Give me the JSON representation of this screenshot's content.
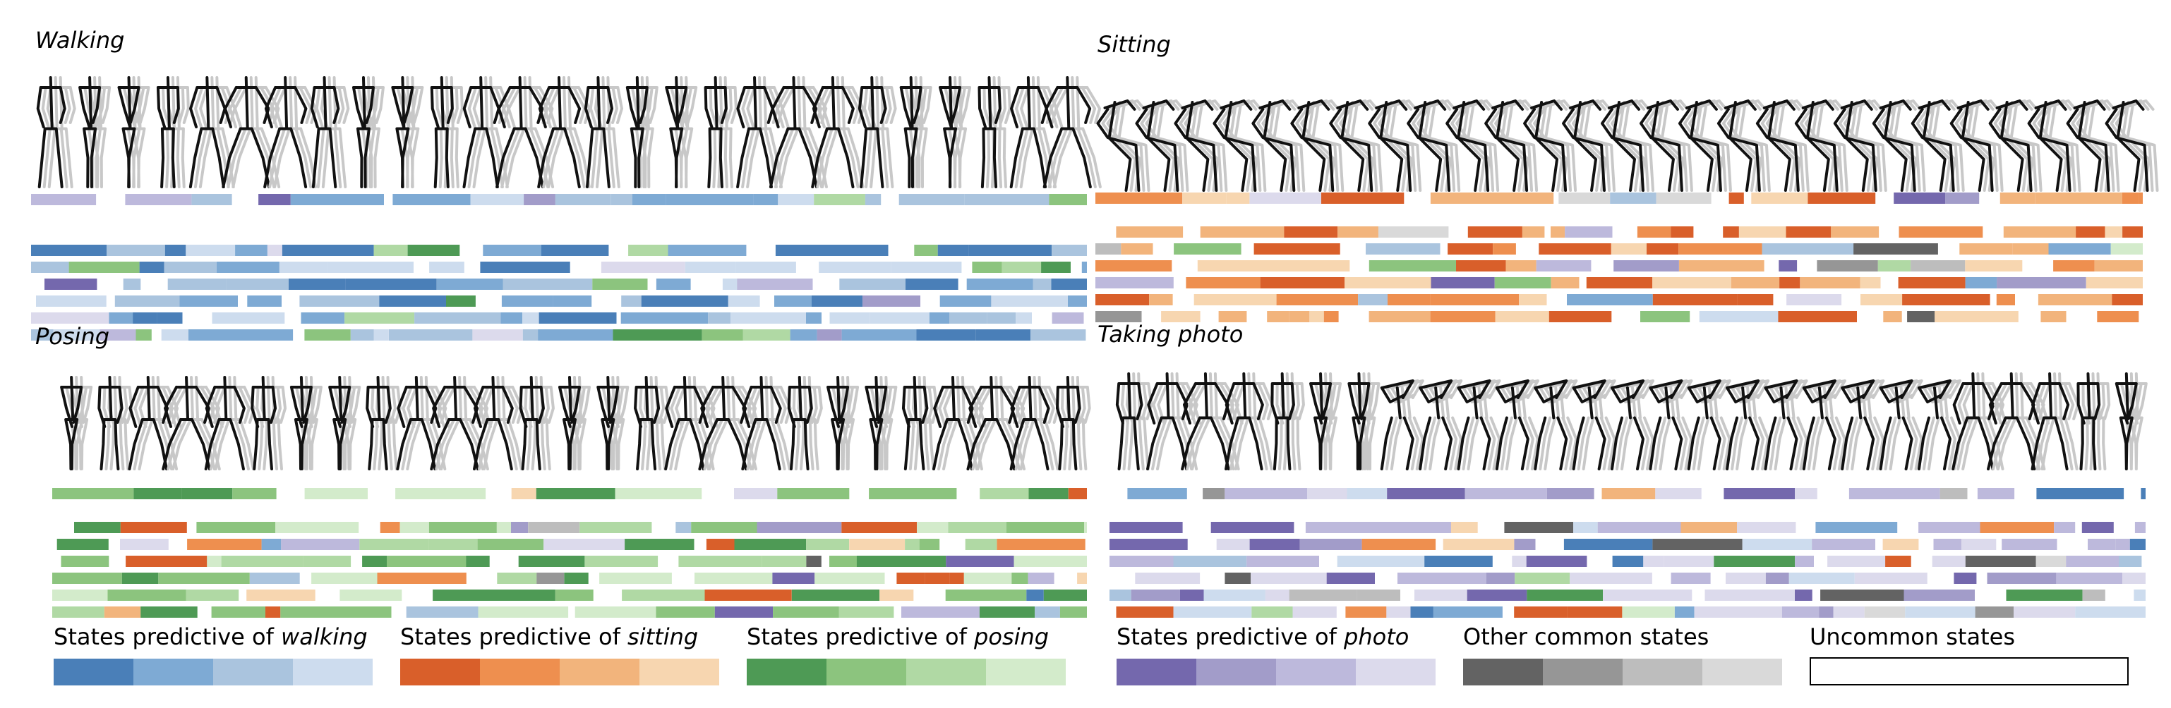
{
  "panels": [
    {
      "id": "walking",
      "title": "Walking",
      "palette_group": "walking"
    },
    {
      "id": "sitting",
      "title": "Sitting",
      "palette_group": "sitting"
    },
    {
      "id": "posing",
      "title": "Posing",
      "palette_group": "posing"
    },
    {
      "id": "photo",
      "title": "Taking photo",
      "palette_group": "photo"
    }
  ],
  "legend": [
    {
      "prefix": "States predictive of ",
      "emph": "walking",
      "colors": [
        "#4a7fb8",
        "#7eaad4",
        "#aac4de",
        "#cddcee"
      ]
    },
    {
      "prefix": "States predictive of ",
      "emph": "sitting",
      "colors": [
        "#d95f2a",
        "#ee8f4f",
        "#f2b47c",
        "#f7d6b0"
      ]
    },
    {
      "prefix": "States predictive of ",
      "emph": "posing",
      "colors": [
        "#4e9a55",
        "#8cc47e",
        "#b0d9a4",
        "#d3ebcb"
      ]
    },
    {
      "prefix": "States predictive of ",
      "emph": "photo",
      "colors": [
        "#7468ad",
        "#a29cc9",
        "#bdb9dc",
        "#dcdaec"
      ]
    },
    {
      "prefix": "Other common states",
      "emph": "",
      "colors": [
        "#636363",
        "#969696",
        "#bdbdbd",
        "#d9d9d9"
      ]
    },
    {
      "prefix": "Uncommon states",
      "emph": "",
      "colors": []
    }
  ],
  "colors": {
    "figure_stroke": "#111111",
    "ghost_stroke": "#c8c8c8"
  }
}
